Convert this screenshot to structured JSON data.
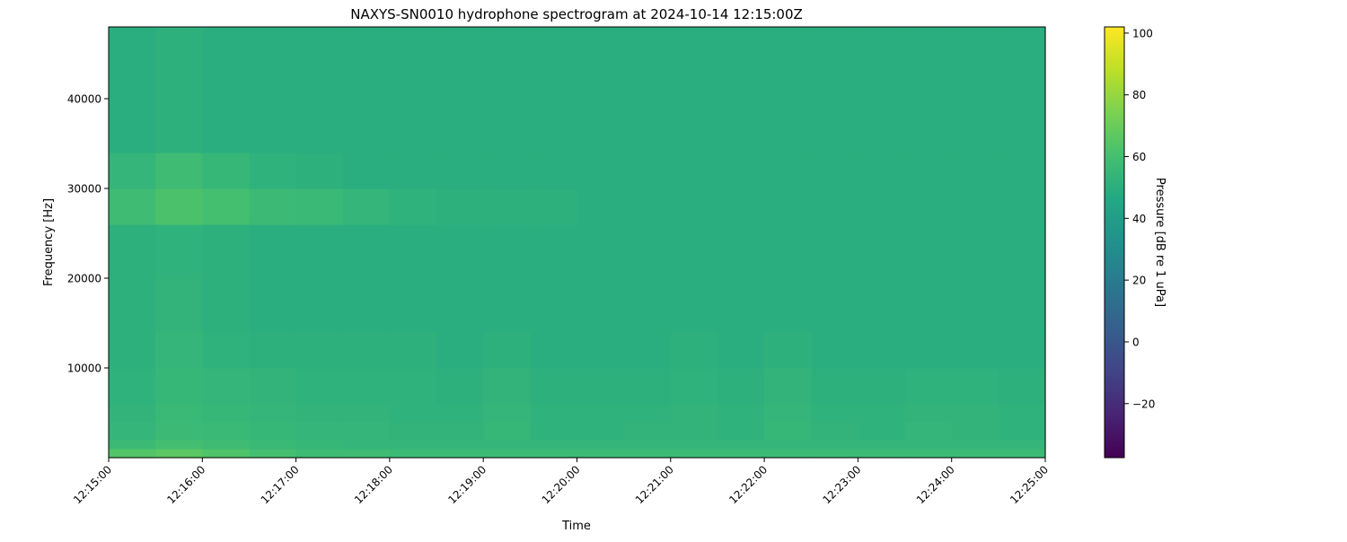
{
  "chart_data": {
    "type": "heatmap",
    "title": "NAXYS-SN0010 hydrophone spectrogram at 2024-10-14 12:15:00Z",
    "xlabel": "Time",
    "ylabel": "Frequency [Hz]",
    "colorbar_label": "Pressure [dB re 1 uPa]",
    "colormap": "viridis",
    "clim": [
      -37.5,
      102
    ],
    "ylim": [
      0,
      48000
    ],
    "xlim": [
      "12:15:00",
      "12:25:00"
    ],
    "x_ticks": [
      "12:15:00",
      "12:16:00",
      "12:17:00",
      "12:18:00",
      "12:19:00",
      "12:20:00",
      "12:21:00",
      "12:22:00",
      "12:23:00",
      "12:24:00",
      "12:25:00"
    ],
    "y_ticks": [
      10000,
      20000,
      30000,
      40000
    ],
    "colorbar_ticks": [
      100,
      80,
      60,
      40,
      20,
      0,
      -20
    ],
    "colorbar_tick_labels": [
      "100",
      "80",
      "60",
      "40",
      "20",
      "0",
      "−20"
    ],
    "time_bin_seconds": 30,
    "freq_edges_hz": [
      0,
      1000,
      2000,
      4000,
      6000,
      10000,
      14000,
      20000,
      26000,
      30000,
      34000,
      48000
    ],
    "values_db": [
      [
        64,
        66,
        63,
        60,
        58,
        58,
        57,
        57,
        57,
        57,
        57,
        57,
        57,
        57,
        57,
        57,
        57,
        57,
        57,
        57
      ],
      [
        57,
        60,
        58,
        56,
        55,
        54,
        54,
        54,
        54,
        54,
        54,
        54,
        54,
        54,
        54,
        54,
        54,
        54,
        54,
        54
      ],
      [
        54,
        57,
        56,
        55,
        54,
        54,
        53,
        53,
        55,
        52,
        52,
        53,
        53,
        52,
        55,
        53,
        52,
        54,
        53,
        52
      ],
      [
        53,
        56,
        55,
        54,
        53,
        53,
        52,
        52,
        54,
        52,
        52,
        52,
        53,
        52,
        54,
        52,
        52,
        53,
        53,
        52
      ],
      [
        52,
        55,
        54,
        53,
        52,
        52,
        52,
        51,
        53,
        51,
        51,
        51,
        52,
        51,
        53,
        51,
        51,
        52,
        52,
        51
      ],
      [
        51,
        54,
        52,
        51,
        51,
        51,
        51,
        50,
        51,
        50,
        50,
        50,
        51,
        50,
        51,
        50,
        50,
        50,
        50,
        50
      ],
      [
        51,
        53,
        51,
        50,
        50,
        50,
        50,
        50,
        50,
        50,
        50,
        50,
        50,
        50,
        50,
        50,
        50,
        50,
        50,
        50
      ],
      [
        51,
        52,
        51,
        50,
        50,
        50,
        50,
        50,
        50,
        50,
        50,
        50,
        50,
        50,
        50,
        50,
        50,
        50,
        50,
        50
      ],
      [
        58,
        62,
        60,
        57,
        56,
        54,
        52,
        51,
        51,
        51,
        50,
        50,
        50,
        50,
        50,
        50,
        50,
        50,
        50,
        50
      ],
      [
        54,
        58,
        55,
        52,
        51,
        50,
        50,
        50,
        50,
        50,
        50,
        50,
        50,
        50,
        50,
        50,
        50,
        50,
        50,
        50
      ],
      [
        50,
        51,
        50,
        50,
        50,
        50,
        50,
        50,
        50,
        50,
        50,
        50,
        50,
        50,
        50,
        50,
        50,
        50,
        50,
        50
      ]
    ]
  }
}
